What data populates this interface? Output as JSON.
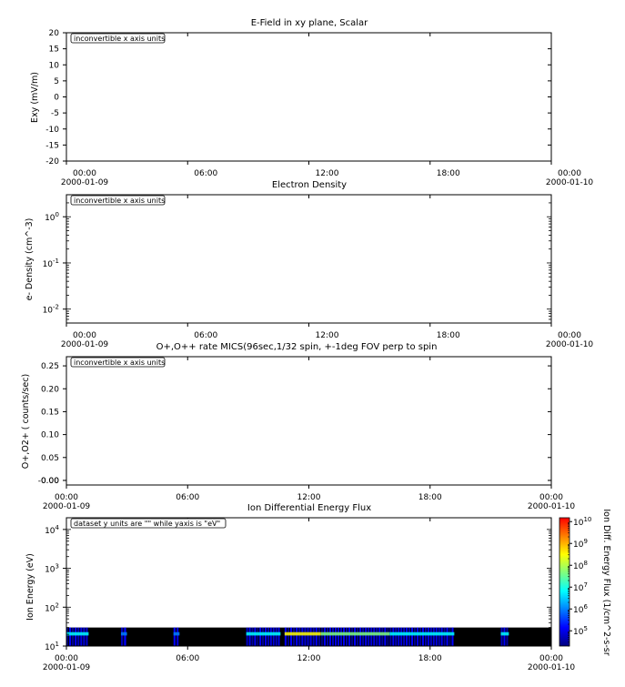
{
  "chart_data": [
    {
      "type": "line",
      "title": "E-Field in xy plane, Scalar",
      "ylabel": "Exy (mV/m)",
      "ylim": [
        -20,
        20
      ],
      "yticks": [
        "20",
        "15",
        "10",
        "5",
        "0",
        "-5",
        "-10",
        "-15",
        "-20"
      ],
      "xticks": [
        {
          "time": "00:00",
          "date": "2000-01-09"
        },
        {
          "time": "06:00",
          "date": ""
        },
        {
          "time": "12:00",
          "date": ""
        },
        {
          "time": "18:00",
          "date": ""
        },
        {
          "time": "00:00",
          "date": "2000-01-10"
        }
      ],
      "note": "inconvertible x axis units",
      "series": []
    },
    {
      "type": "line",
      "title": "Electron Density",
      "ylabel": "e- Density (cm^-3)",
      "yscale": "log",
      "ylim": [
        0.005,
        3
      ],
      "yticks": [
        {
          "base": "10",
          "exp": "0"
        },
        {
          "base": "10",
          "exp": "-1"
        },
        {
          "base": "10",
          "exp": "-2"
        }
      ],
      "xticks": [
        {
          "time": "00:00",
          "date": "2000-01-09"
        },
        {
          "time": "06:00",
          "date": ""
        },
        {
          "time": "12:00",
          "date": ""
        },
        {
          "time": "18:00",
          "date": ""
        },
        {
          "time": "00:00",
          "date": "2000-01-10"
        }
      ],
      "note": "inconvertible x axis units",
      "series": []
    },
    {
      "type": "line",
      "title": "O+,O++ rate MICS(96sec,1/32 spin, +-1deg FOV perp to spin",
      "ylabel": "O+,O2+ ( counts/sec)",
      "ylim": [
        -0.01,
        0.27
      ],
      "yticks": [
        "0.25",
        "0.20",
        "0.15",
        "0.10",
        "0.05",
        "0.00",
        "-0.00"
      ],
      "xticks": [
        {
          "time": "00:00",
          "date": "2000-01-09"
        },
        {
          "time": "06:00",
          "date": ""
        },
        {
          "time": "12:00",
          "date": ""
        },
        {
          "time": "18:00",
          "date": ""
        },
        {
          "time": "00:00",
          "date": "2000-01-10"
        }
      ],
      "note": "inconvertible x axis units",
      "series": []
    },
    {
      "type": "heatmap",
      "title": "Ion Differential Energy Flux",
      "ylabel": "Ion Energy (eV)",
      "yscale": "log",
      "ylim": [
        10,
        20000
      ],
      "yticks": [
        {
          "base": "10",
          "exp": "4"
        },
        {
          "base": "10",
          "exp": "3"
        },
        {
          "base": "10",
          "exp": "2"
        },
        {
          "base": "10",
          "exp": "1"
        }
      ],
      "xticks": [
        {
          "time": "00:00",
          "date": "2000-01-09"
        },
        {
          "time": "06:00",
          "date": ""
        },
        {
          "time": "12:00",
          "date": ""
        },
        {
          "time": "18:00",
          "date": ""
        },
        {
          "time": "00:00",
          "date": "2000-01-10"
        }
      ],
      "note": "dataset y units are \"\" while yaxis is \"eV\"",
      "colorbar": {
        "label": "Ion Diff. Energy Flux (1/cm^2-s-sr",
        "scale": "log",
        "range": [
          20000,
          15000000000
        ],
        "ticks": [
          {
            "base": "10",
            "exp": "10"
          },
          {
            "base": "10",
            "exp": "9"
          },
          {
            "base": "10",
            "exp": "8"
          },
          {
            "base": "10",
            "exp": "7"
          },
          {
            "base": "10",
            "exp": "6"
          },
          {
            "base": "10",
            "exp": "5"
          }
        ],
        "colors": [
          "#00007f",
          "#0000ff",
          "#007fff",
          "#00ffff",
          "#7fff7f",
          "#ffff00",
          "#ff7f00",
          "#ff0000"
        ]
      },
      "data_coverage": {
        "energy_range_eV": [
          10,
          30
        ],
        "time_range_hours": [
          0,
          24
        ],
        "background_color": "#000000"
      },
      "streaks": [
        {
          "t0": 0.0,
          "t1": 1.1,
          "level": 0.25
        },
        {
          "t0": 2.7,
          "t1": 3.0,
          "level": 0.2
        },
        {
          "t0": 5.3,
          "t1": 5.6,
          "level": 0.2
        },
        {
          "t0": 8.9,
          "t1": 10.6,
          "level": 0.35
        },
        {
          "t0": 10.8,
          "t1": 12.6,
          "level": 0.5
        },
        {
          "t0": 12.6,
          "t1": 16.0,
          "level": 0.42
        },
        {
          "t0": 16.0,
          "t1": 19.2,
          "level": 0.3
        },
        {
          "t0": 21.5,
          "t1": 21.9,
          "level": 0.25
        }
      ]
    }
  ]
}
